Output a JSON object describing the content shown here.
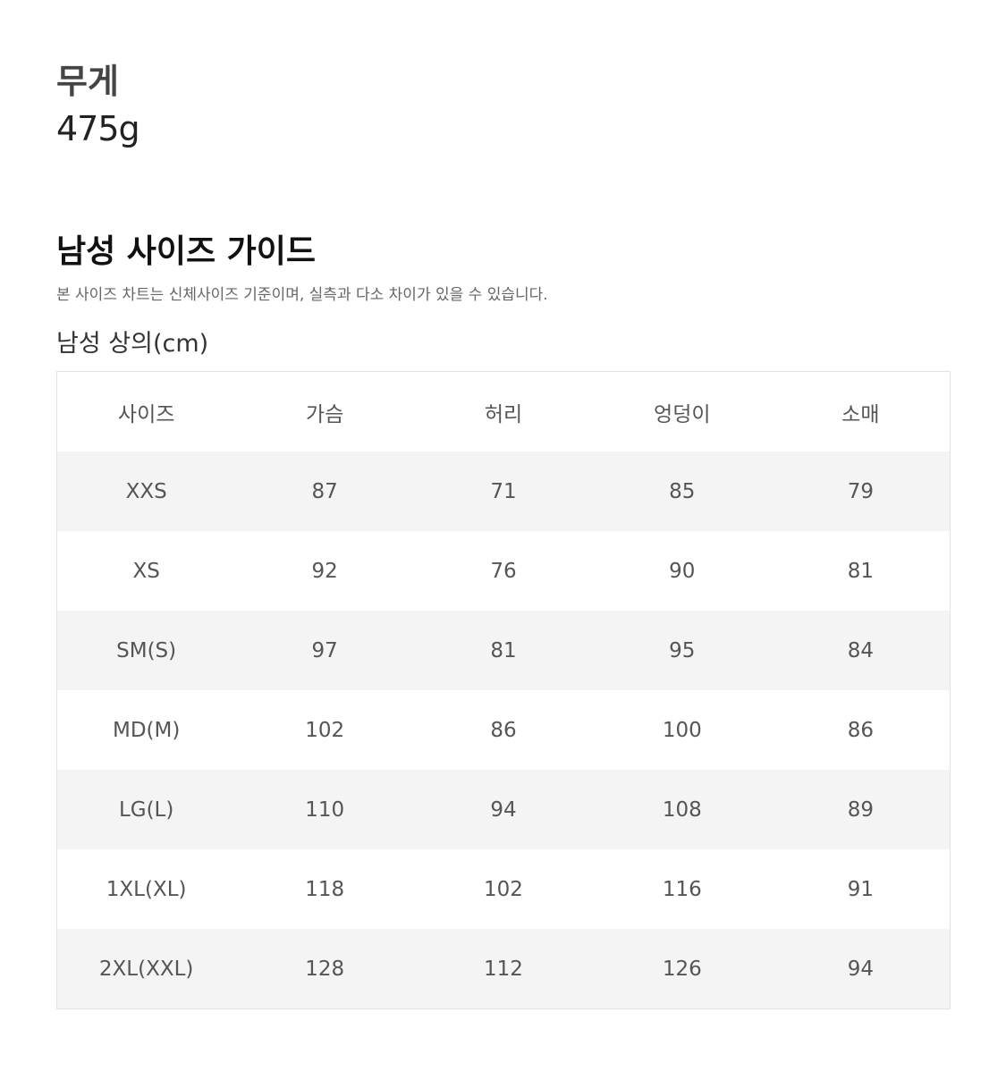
{
  "weight": {
    "label": "무게",
    "value": "475g"
  },
  "guide": {
    "title": "남성 사이즈 가이드",
    "note": "본 사이즈 차트는 신체사이즈 기준이며, 실측과 다소 차이가 있을 수 있습니다.",
    "table_title": "남성 상의(cm)",
    "headers": [
      "사이즈",
      "가슴",
      "허리",
      "엉덩이",
      "소매"
    ],
    "rows": [
      [
        "XXS",
        "87",
        "71",
        "85",
        "79"
      ],
      [
        "XS",
        "92",
        "76",
        "90",
        "81"
      ],
      [
        "SM(S)",
        "97",
        "81",
        "95",
        "84"
      ],
      [
        "MD(M)",
        "102",
        "86",
        "100",
        "86"
      ],
      [
        "LG(L)",
        "110",
        "94",
        "108",
        "89"
      ],
      [
        "1XL(XL)",
        "118",
        "102",
        "116",
        "91"
      ],
      [
        "2XL(XXL)",
        "128",
        "112",
        "126",
        "94"
      ]
    ]
  }
}
